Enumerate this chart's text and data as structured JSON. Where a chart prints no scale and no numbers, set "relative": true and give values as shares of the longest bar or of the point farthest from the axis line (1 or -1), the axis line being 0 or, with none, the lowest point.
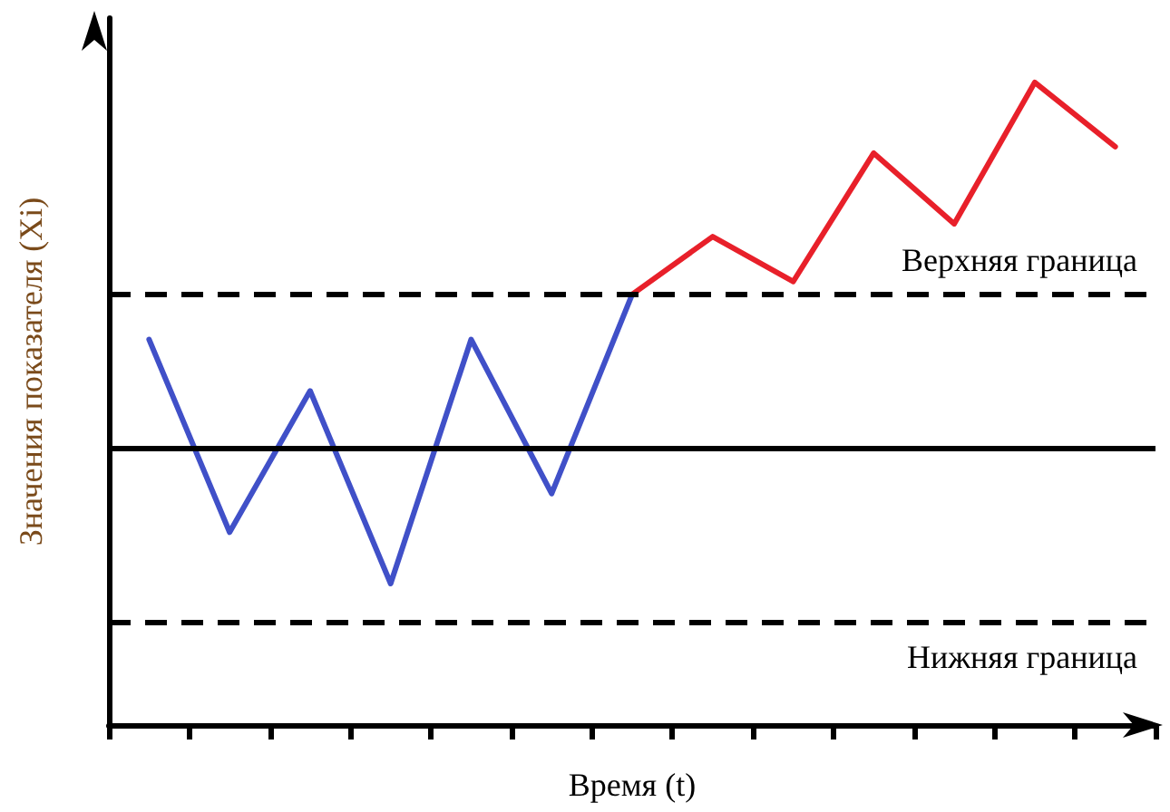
{
  "chart_data": {
    "type": "line",
    "relative": true,
    "xlabel": "Время (t)",
    "ylabel": "Значения показателя (Xi)",
    "categories": [
      null,
      null,
      null,
      null,
      null,
      null,
      null,
      null,
      null,
      null,
      null,
      null,
      null
    ],
    "marker": "none",
    "line_style": "solid",
    "series": [
      {
        "color": "#4050c8",
        "values": [
          0.6,
          0.3,
          0.52,
          0.22,
          0.6,
          0.36,
          0.67,
          null,
          null,
          null,
          null,
          null,
          null
        ]
      },
      {
        "color": "#e8202a",
        "values": [
          null,
          null,
          null,
          null,
          null,
          null,
          0.67,
          0.76,
          0.69,
          0.89,
          0.78,
          1,
          0.9
        ]
      }
    ],
    "ref_lines": [
      {
        "axis": "y",
        "value": 0.67,
        "label": "Верхняя граница",
        "line_style": "dashed",
        "color": "#000000"
      },
      {
        "axis": "y",
        "value": 0.43,
        "label": null,
        "line_style": "solid",
        "color": "#000000"
      },
      {
        "axis": "y",
        "value": 0.16,
        "label": "Нижняя граница",
        "line_style": "dashed",
        "color": "#000000"
      }
    ]
  }
}
